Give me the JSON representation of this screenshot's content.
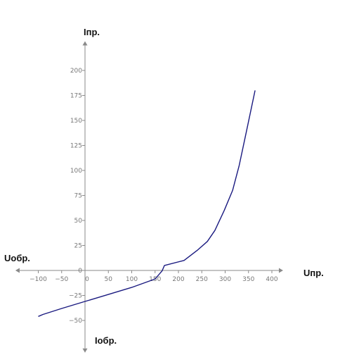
{
  "chart_data": {
    "type": "line",
    "title": "",
    "axis_labels": {
      "x_positive": "Uпр.",
      "x_negative": "Uобр.",
      "y_positive": "Iпр.",
      "y_negative": "Iобр."
    },
    "x_ticks": [
      -100,
      -50,
      0,
      50,
      100,
      150,
      200,
      250,
      300,
      350,
      400
    ],
    "y_ticks": [
      -50,
      -25,
      0,
      25,
      50,
      75,
      100,
      125,
      150,
      175,
      200
    ],
    "xlim": [
      -140,
      415
    ],
    "ylim": [
      -78,
      225
    ],
    "grid": false,
    "legend": "none",
    "line_color": "#1a1a80",
    "axis_color": "#8a8a8a",
    "series": [
      {
        "x": [
          -100,
          -90,
          -50,
          0,
          50,
          100,
          150,
          165,
          170,
          212,
          240,
          262,
          278,
          298,
          316,
          330,
          346,
          364
        ],
        "y": [
          -46,
          -44,
          -38,
          -31,
          -24,
          -17,
          -8.5,
          -0.5,
          5,
          10,
          20,
          29,
          40,
          60,
          80,
          105,
          140,
          180
        ]
      }
    ]
  }
}
